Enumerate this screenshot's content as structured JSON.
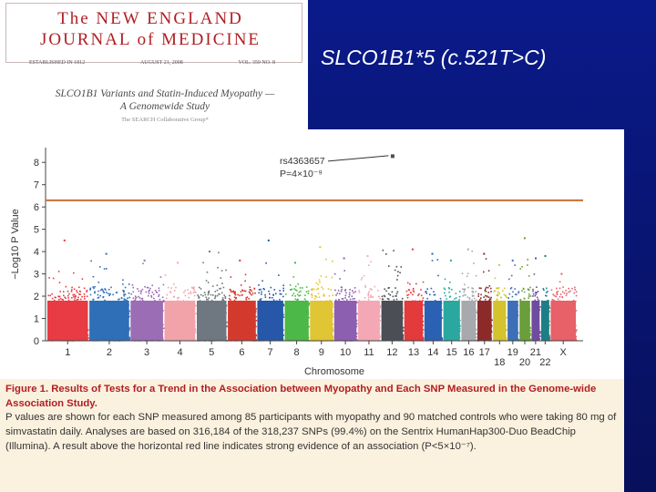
{
  "slide": {
    "title": "SLCO1B1*5 (c.521T>C)",
    "background": "#0b1470"
  },
  "journal": {
    "masthead": "The NEW ENGLAND\nJOURNAL of MEDICINE",
    "established": "ESTABLISHED IN 1812",
    "date": "AUGUST 21, 2008",
    "volume": "VOL. 359   NO. 8",
    "article_title": "SLCO1B1 Variants and Statin-Induced Myopathy —\nA Genomewide Study",
    "authors": "The SEARCH Collaborative Group*",
    "accent": "#b01e23"
  },
  "caption": {
    "label": "Figure 1.",
    "heading": " Results of Tests for a Trend in the Association between Myopathy and Each SNP Measured in the Genome-wide Association Study.",
    "body": "P values are shown for each SNP measured among 85 participants with myopathy and 90 matched controls who were taking 80 mg of simvastatin daily. Analyses are based on 316,184 of the 318,237 SNPs (99.4%) on the Sentrix HumanHap300-Duo BeadChip (Illumina). A result above the horizontal red line indicates strong evidence of an association (P<5×10⁻⁷)."
  },
  "chart_data": {
    "type": "scatter",
    "title": "",
    "xlabel": "Chromosome",
    "ylabel": "−Log10 P Value",
    "ylim": [
      0,
      8.5
    ],
    "yticks": [
      0,
      1,
      2,
      3,
      4,
      5,
      6,
      7,
      8
    ],
    "threshold": {
      "value": 6.3,
      "color": "#c9703a"
    },
    "grid": false,
    "annotation": {
      "snp": "rs4363657",
      "pvalue": "P=4×10⁻⁹",
      "y": 8.3
    },
    "chromosomes": [
      {
        "label": "1",
        "label_row": 0,
        "color": "#e83b43",
        "peak": 4.5
      },
      {
        "label": "2",
        "label_row": 0,
        "color": "#2f6fb8",
        "peak": 3.9
      },
      {
        "label": "3",
        "label_row": 0,
        "color": "#9a6db4",
        "peak": 3.6
      },
      {
        "label": "4",
        "label_row": 0,
        "color": "#f2a3aa",
        "peak": 3.5
      },
      {
        "label": "5",
        "label_row": 0,
        "color": "#6f7880",
        "peak": 4.0
      },
      {
        "label": "6",
        "label_row": 0,
        "color": "#d33a2d",
        "peak": 3.6
      },
      {
        "label": "7",
        "label_row": 0,
        "color": "#2657a8",
        "peak": 4.5
      },
      {
        "label": "8",
        "label_row": 0,
        "color": "#4cb848",
        "peak": 3.5
      },
      {
        "label": "9",
        "label_row": 0,
        "color": "#e0c534",
        "peak": 4.2
      },
      {
        "label": "10",
        "label_row": 0,
        "color": "#8d5fb0",
        "peak": 3.7
      },
      {
        "label": "11",
        "label_row": 0,
        "color": "#f4a8b5",
        "peak": 3.8
      },
      {
        "label": "12",
        "label_row": 0,
        "color": "#4b4f55",
        "peak": 8.3
      },
      {
        "label": "13",
        "label_row": 0,
        "color": "#e33a3c",
        "peak": 4.1
      },
      {
        "label": "14",
        "label_row": 0,
        "color": "#2b61b2",
        "peak": 3.9
      },
      {
        "label": "15",
        "label_row": 0,
        "color": "#2aa8a0",
        "peak": 3.6
      },
      {
        "label": "16",
        "label_row": 0,
        "color": "#a7a9ac",
        "peak": 4.1
      },
      {
        "label": "17",
        "label_row": 0,
        "color": "#8c2a2a",
        "peak": 3.9
      },
      {
        "label": "18",
        "label_row": 1,
        "color": "#d4c22e",
        "peak": 3.4
      },
      {
        "label": "19",
        "label_row": 0,
        "color": "#3e6fb6",
        "peak": 3.6
      },
      {
        "label": "20",
        "label_row": 1,
        "color": "#6a9e3a",
        "peak": 4.6
      },
      {
        "label": "21",
        "label_row": 0,
        "color": "#6f4c9e",
        "peak": 3.7
      },
      {
        "label": "22",
        "label_row": 1,
        "color": "#1d7f86",
        "peak": 3.8
      },
      {
        "label": "X",
        "label_row": 0,
        "color": "#e86068",
        "peak": 3.0
      }
    ]
  }
}
